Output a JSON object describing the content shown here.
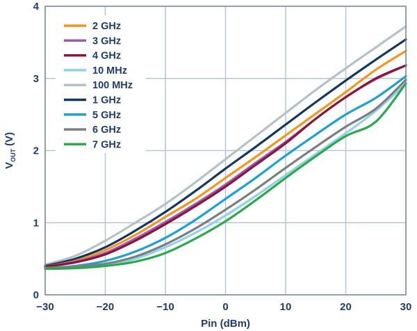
{
  "chart_data": {
    "type": "line",
    "xlabel": "Pin (dBm)",
    "ylabel_main": "V",
    "ylabel_sub": "OUT",
    "ylabel_unit": "(V)",
    "xlim": [
      -30,
      30
    ],
    "ylim": [
      0,
      4
    ],
    "xticks": [
      -30,
      -20,
      -10,
      0,
      10,
      20,
      30
    ],
    "xtick_labels": [
      "−30",
      "−20",
      "−10",
      "0",
      "10",
      "20",
      "30"
    ],
    "yticks": [
      0,
      1,
      2,
      3,
      4
    ],
    "ytick_labels": [
      "0",
      "1",
      "2",
      "3",
      "4"
    ],
    "grid": true,
    "legend_position": "top-left",
    "x": [
      -30,
      -25,
      -20,
      -15,
      -10,
      -5,
      0,
      5,
      10,
      15,
      20,
      25,
      30
    ],
    "series": [
      {
        "name": "2 GHz",
        "color": "#f7941d",
        "values": [
          0.39,
          0.47,
          0.62,
          0.83,
          1.08,
          1.33,
          1.62,
          1.91,
          2.21,
          2.51,
          2.81,
          3.12,
          3.38
        ]
      },
      {
        "name": "3 GHz",
        "color": "#9b59b6",
        "values": [
          0.39,
          0.46,
          0.58,
          0.78,
          1.01,
          1.26,
          1.53,
          1.83,
          2.12,
          2.44,
          2.74,
          2.99,
          3.18
        ]
      },
      {
        "name": "4 GHz",
        "color": "#8b1538",
        "values": [
          0.39,
          0.45,
          0.56,
          0.75,
          0.98,
          1.23,
          1.5,
          1.8,
          2.1,
          2.44,
          2.74,
          3.0,
          3.18
        ]
      },
      {
        "name": "10 MHz",
        "color": "#8ed3eb",
        "values": [
          0.37,
          0.38,
          0.41,
          0.5,
          0.66,
          0.86,
          1.1,
          1.37,
          1.66,
          1.95,
          2.24,
          2.55,
          2.93
        ]
      },
      {
        "name": "100 MHz",
        "color": "#b4c2c8",
        "values": [
          0.42,
          0.54,
          0.75,
          1.0,
          1.26,
          1.56,
          1.88,
          2.2,
          2.52,
          2.84,
          3.14,
          3.43,
          3.72
        ]
      },
      {
        "name": "1 GHz",
        "color": "#14365c",
        "values": [
          0.4,
          0.5,
          0.66,
          0.89,
          1.15,
          1.44,
          1.75,
          2.05,
          2.36,
          2.67,
          2.97,
          3.26,
          3.54
        ]
      },
      {
        "name": "5 GHz",
        "color": "#1ba1d4",
        "values": [
          0.37,
          0.4,
          0.47,
          0.6,
          0.79,
          1.04,
          1.33,
          1.62,
          1.93,
          2.22,
          2.5,
          2.73,
          3.03
        ]
      },
      {
        "name": "6 GHz",
        "color": "#7e7e80",
        "values": [
          0.37,
          0.39,
          0.43,
          0.53,
          0.7,
          0.92,
          1.18,
          1.46,
          1.76,
          2.05,
          2.33,
          2.58,
          2.98
        ]
      },
      {
        "name": "7 GHz",
        "color": "#2aa84a",
        "values": [
          0.36,
          0.37,
          0.4,
          0.46,
          0.58,
          0.78,
          1.02,
          1.31,
          1.62,
          1.92,
          2.2,
          2.4,
          2.93
        ]
      }
    ]
  }
}
